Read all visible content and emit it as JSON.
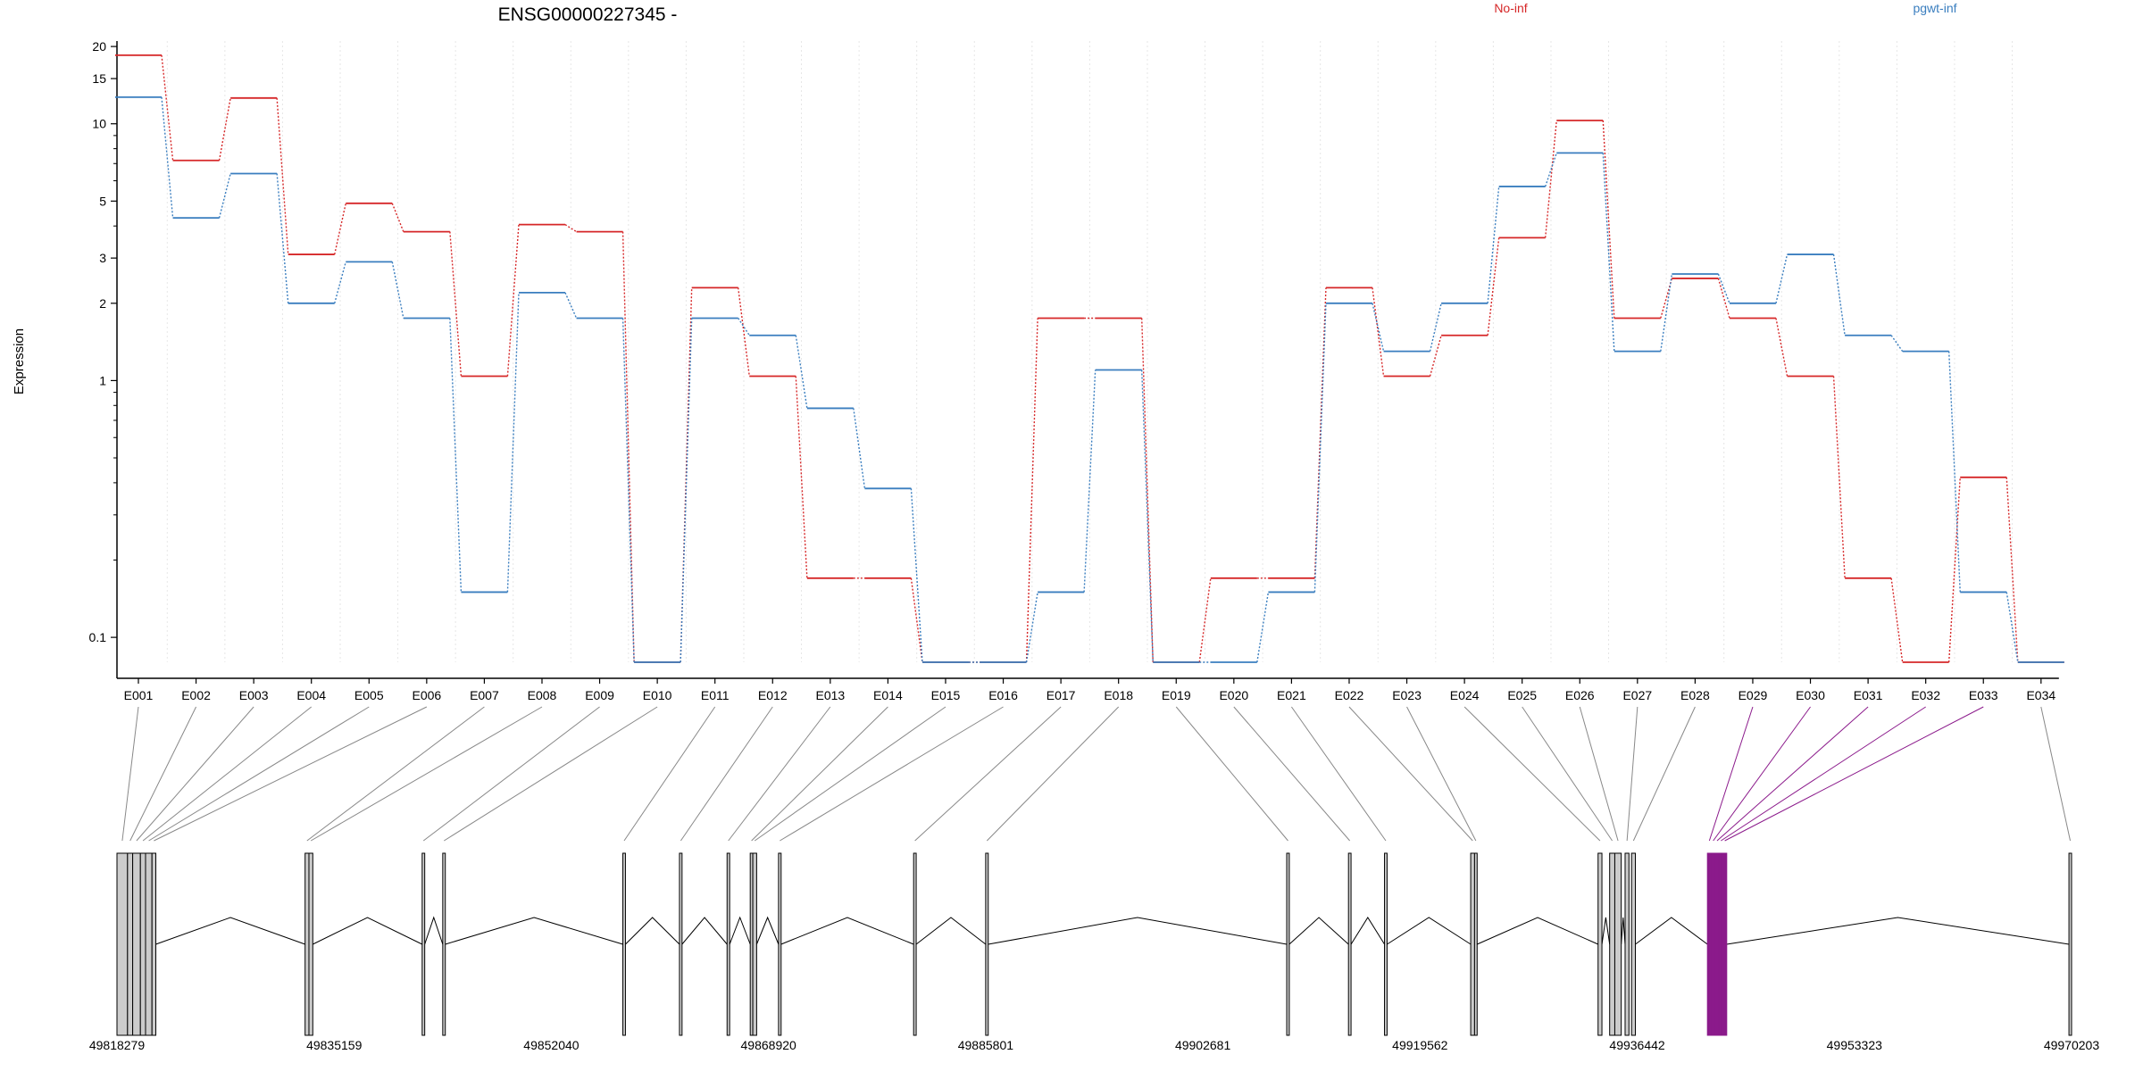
{
  "chart_data": {
    "type": "line",
    "title": "ENSG00000227345 -",
    "ylabel": "Expression",
    "yscale": "log",
    "ylim": [
      0.08,
      21
    ],
    "yticks": [
      0.1,
      1,
      2,
      3,
      5,
      10,
      15,
      20
    ],
    "ytick_labels": [
      "0.1",
      "1",
      "2",
      "3",
      "5",
      "10",
      "15",
      "20"
    ],
    "grid": "vertical, light dotted",
    "legend_placement": "top-right",
    "categories": [
      "E001",
      "E002",
      "E003",
      "E004",
      "E005",
      "E006",
      "E007",
      "E008",
      "E009",
      "E010",
      "E011",
      "E012",
      "E013",
      "E014",
      "E015",
      "E016",
      "E017",
      "E018",
      "E019",
      "E020",
      "E021",
      "E022",
      "E023",
      "E024",
      "E025",
      "E026",
      "E027",
      "E028",
      "E029",
      "E030",
      "E031",
      "E032",
      "E033",
      "E034"
    ],
    "series": [
      {
        "name": "No-inf",
        "color": "#d62728",
        "values": [
          18.5,
          7.2,
          12.6,
          3.1,
          4.9,
          3.8,
          1.04,
          4.05,
          3.8,
          0.08,
          2.3,
          1.04,
          0.17,
          0.17,
          0.08,
          0.08,
          1.75,
          1.75,
          0.08,
          0.17,
          0.17,
          2.3,
          1.04,
          1.5,
          3.6,
          10.3,
          1.75,
          2.5,
          1.75,
          1.04,
          0.17,
          0.08,
          0.42,
          0.08
        ]
      },
      {
        "name": "pgwt-inf",
        "color": "#3a7ebf",
        "values": [
          12.7,
          4.3,
          6.4,
          2.0,
          2.9,
          1.75,
          0.15,
          2.2,
          1.75,
          0.08,
          1.75,
          1.5,
          0.78,
          0.38,
          0.08,
          0.08,
          0.15,
          1.1,
          0.08,
          0.08,
          0.15,
          2.0,
          1.3,
          2.0,
          5.7,
          7.7,
          1.3,
          2.6,
          2.0,
          3.1,
          1.5,
          1.3,
          0.15,
          0.08
        ]
      }
    ],
    "gene_model": {
      "genomic_ticks": [
        "49818279",
        "49835159",
        "49852040",
        "49868920",
        "49885801",
        "49902681",
        "49919562",
        "49936442",
        "49953323",
        "49970203"
      ],
      "range": [
        49818279,
        49970203
      ],
      "exons": [
        [
          49818279,
          49819100
        ],
        [
          49819100,
          49819500
        ],
        [
          49819500,
          49820100
        ],
        [
          49820100,
          49820500
        ],
        [
          49820500,
          49821000
        ],
        [
          49821000,
          49821300
        ],
        [
          49832900,
          49833200
        ],
        [
          49833200,
          49833500
        ],
        [
          49842000,
          49842200
        ],
        [
          49843600,
          49843800
        ],
        [
          49857600,
          49857800
        ],
        [
          49862000,
          49862200
        ],
        [
          49865700,
          49865900
        ],
        [
          49867500,
          49867700
        ],
        [
          49867700,
          49868000
        ],
        [
          49869700,
          49869900
        ],
        [
          49880200,
          49880400
        ],
        [
          49885800,
          49886000
        ],
        [
          49909200,
          49909400
        ],
        [
          49914000,
          49914200
        ],
        [
          49916800,
          49917000
        ],
        [
          49923500,
          49923800
        ],
        [
          49923800,
          49924000
        ],
        [
          49933400,
          49933700
        ],
        [
          49934300,
          49934700
        ],
        [
          49934700,
          49935200
        ],
        [
          49935500,
          49935800
        ],
        [
          49936000,
          49936300
        ],
        [
          49941900,
          49942200
        ],
        [
          49942200,
          49942500
        ],
        [
          49942500,
          49942800
        ],
        [
          49942800,
          49943100
        ],
        [
          49943100,
          49943400
        ],
        [
          49970000,
          49970203
        ]
      ],
      "highlight_exons": [
        28,
        29,
        30,
        31,
        32
      ],
      "highlight_color": "#8b1a8b"
    }
  }
}
